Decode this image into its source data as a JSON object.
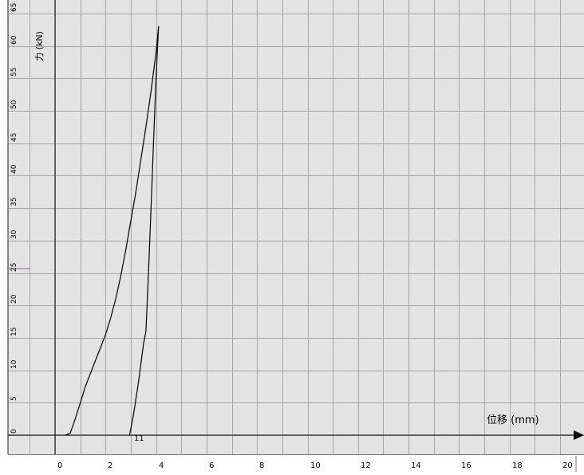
{
  "chart_data": {
    "type": "line",
    "ylabel": "力 (kN)",
    "xlabel": "位移 (mm)",
    "xlim": [
      -2.0,
      21.0
    ],
    "ylim": [
      -1.0,
      65.0
    ],
    "x_ticks": [
      0,
      2,
      4,
      6,
      8,
      10,
      12,
      14,
      16,
      18,
      20
    ],
    "y_ticks": [
      0,
      5,
      10,
      15,
      20,
      25,
      30,
      35,
      40,
      45,
      50,
      55,
      60,
      65
    ],
    "grid": true,
    "annotations": [
      {
        "text": "11",
        "x": 3.0,
        "y": 0
      }
    ],
    "series": [
      {
        "values": [
          [
            0.4,
            0.0
          ],
          [
            0.6,
            0.3
          ],
          [
            0.8,
            2.5
          ],
          [
            1.0,
            5.0
          ],
          [
            1.2,
            7.5
          ],
          [
            1.4,
            9.5
          ],
          [
            1.6,
            11.5
          ],
          [
            1.8,
            13.5
          ],
          [
            2.0,
            15.5
          ],
          [
            2.2,
            18.0
          ],
          [
            2.4,
            21.0
          ],
          [
            2.6,
            24.5
          ],
          [
            2.8,
            28.5
          ],
          [
            3.0,
            33.0
          ],
          [
            3.2,
            37.5
          ],
          [
            3.4,
            42.5
          ],
          [
            3.6,
            47.5
          ],
          [
            3.8,
            53.0
          ],
          [
            4.0,
            59.0
          ],
          [
            4.1,
            63.0
          ],
          [
            4.0,
            55.0
          ],
          [
            3.9,
            45.0
          ],
          [
            3.8,
            35.0
          ],
          [
            3.7,
            25.0
          ],
          [
            3.6,
            16.0
          ],
          [
            3.5,
            14.0
          ],
          [
            3.3,
            8.0
          ],
          [
            3.1,
            3.0
          ],
          [
            2.95,
            0.0
          ]
        ]
      }
    ]
  }
}
